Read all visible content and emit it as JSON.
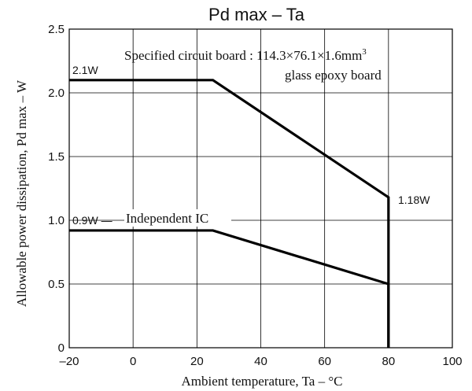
{
  "chart_data": {
    "type": "line",
    "title": "Pd max  –  Ta",
    "xlabel": "Ambient temperature, Ta  –  °C",
    "ylabel": "Allowable power dissipation, Pd max  –  W",
    "xlim": [
      -20,
      100
    ],
    "ylim": [
      0,
      2.5
    ],
    "x_ticks": [
      -20,
      0,
      20,
      40,
      60,
      80,
      100
    ],
    "x_tick_labels": [
      "–20",
      "0",
      "20",
      "40",
      "60",
      "80",
      "100"
    ],
    "y_ticks": [
      0,
      0.5,
      1.0,
      1.5,
      2.0,
      2.5
    ],
    "y_tick_labels": [
      "0",
      "0.5",
      "1.0",
      "1.5",
      "2.0",
      "2.5"
    ],
    "grid": true,
    "series": [
      {
        "name": "Specified circuit board : 114.3×76.1×1.6mm³ glass epoxy board",
        "x": [
          -20,
          25,
          80,
          80
        ],
        "y": [
          2.1,
          2.1,
          1.18,
          0
        ]
      },
      {
        "name": "Independent IC",
        "x": [
          -20,
          25,
          80,
          80
        ],
        "y": [
          0.92,
          0.92,
          0.5,
          0
        ]
      }
    ],
    "annotations": {
      "board_line1": "Specified circuit board : 114.3×76.1×1.6mm",
      "board_sup": "3",
      "board_line2": "glass epoxy board",
      "independent": "Independent IC",
      "val_top": "2.1W",
      "val_low": "0.9W —",
      "val_right": "1.18W"
    }
  }
}
